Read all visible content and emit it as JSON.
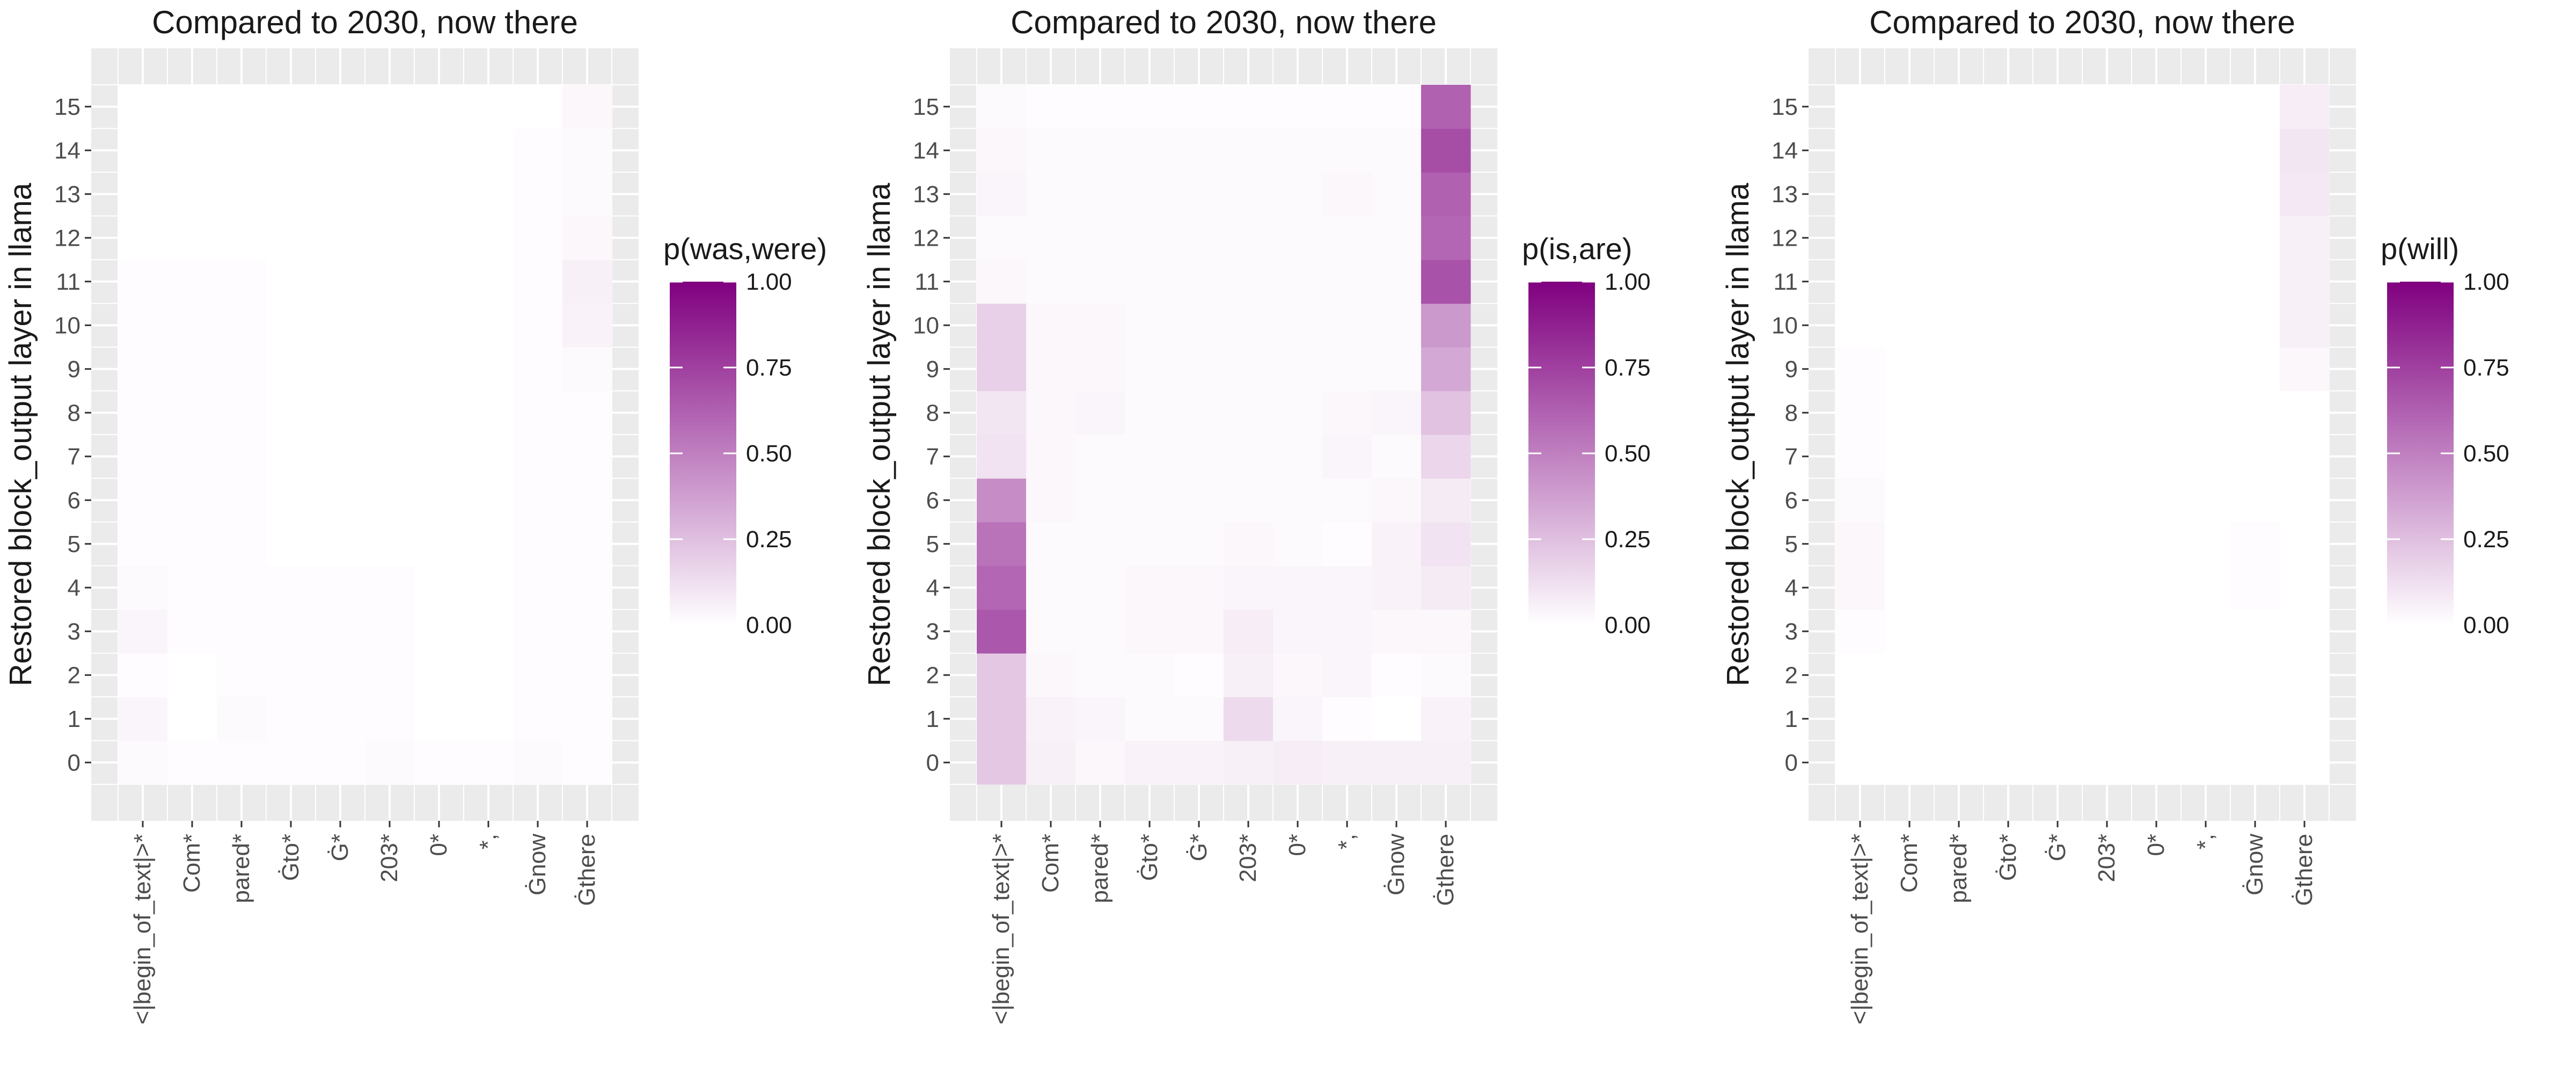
{
  "chart_data": [
    {
      "type": "heatmap",
      "title": "Compared to 2030, now there",
      "ylabel": "Restored block_output layer in llama",
      "xlabel": "",
      "legend": {
        "title": "p(was,were)",
        "ticks": [
          "0.00",
          "0.25",
          "0.50",
          "0.75",
          "1.00"
        ],
        "range": [
          0,
          1
        ],
        "placement": "right"
      },
      "x_categories": [
        "<|begin_of_text|>*",
        "Com*",
        "pared*",
        "Ġto*",
        "Ġ*",
        "203*",
        "0*",
        "*,",
        "Ġnow",
        "Ġthere"
      ],
      "y_categories": [
        "0",
        "1",
        "2",
        "3",
        "4",
        "5",
        "6",
        "7",
        "8",
        "9",
        "10",
        "11",
        "12",
        "13",
        "14",
        "15"
      ],
      "values": [
        [
          0.02,
          0.01,
          0.01,
          0.01,
          0.01,
          0.02,
          0.01,
          0.01,
          0.02,
          0.01
        ],
        [
          0.04,
          0.0,
          0.02,
          0.01,
          0.01,
          0.01,
          0.0,
          0.0,
          0.01,
          0.01
        ],
        [
          0.01,
          0.0,
          0.01,
          0.01,
          0.01,
          0.01,
          0.0,
          0.0,
          0.01,
          0.01
        ],
        [
          0.04,
          0.01,
          0.01,
          0.01,
          0.01,
          0.01,
          0.0,
          0.0,
          0.01,
          0.01
        ],
        [
          0.02,
          0.01,
          0.01,
          0.01,
          0.01,
          0.01,
          0.0,
          0.0,
          0.01,
          0.01
        ],
        [
          0.01,
          0.01,
          0.01,
          0.0,
          0.0,
          0.0,
          0.0,
          0.0,
          0.01,
          0.01
        ],
        [
          0.01,
          0.01,
          0.01,
          0.0,
          0.0,
          0.0,
          0.0,
          0.0,
          0.01,
          0.01
        ],
        [
          0.01,
          0.01,
          0.01,
          0.0,
          0.0,
          0.0,
          0.0,
          0.0,
          0.01,
          0.01
        ],
        [
          0.01,
          0.01,
          0.01,
          0.0,
          0.0,
          0.0,
          0.0,
          0.0,
          0.01,
          0.01
        ],
        [
          0.01,
          0.01,
          0.01,
          0.0,
          0.0,
          0.0,
          0.0,
          0.0,
          0.01,
          0.02
        ],
        [
          0.01,
          0.01,
          0.01,
          0.0,
          0.0,
          0.0,
          0.0,
          0.0,
          0.01,
          0.05
        ],
        [
          0.01,
          0.01,
          0.01,
          0.0,
          0.0,
          0.0,
          0.0,
          0.0,
          0.01,
          0.06
        ],
        [
          0.0,
          0.0,
          0.0,
          0.0,
          0.0,
          0.0,
          0.0,
          0.0,
          0.01,
          0.03
        ],
        [
          0.0,
          0.0,
          0.0,
          0.0,
          0.0,
          0.0,
          0.0,
          0.0,
          0.01,
          0.02
        ],
        [
          0.0,
          0.0,
          0.0,
          0.0,
          0.0,
          0.0,
          0.0,
          0.0,
          0.01,
          0.02
        ],
        [
          0.0,
          0.0,
          0.0,
          0.0,
          0.0,
          0.0,
          0.0,
          0.0,
          0.0,
          0.03
        ]
      ]
    },
    {
      "type": "heatmap",
      "title": "Compared to 2030, now there",
      "ylabel": "Restored block_output layer in llama",
      "xlabel": "",
      "legend": {
        "title": "p(is,are)",
        "ticks": [
          "0.00",
          "0.25",
          "0.50",
          "0.75",
          "1.00"
        ],
        "range": [
          0,
          1
        ],
        "placement": "right"
      },
      "x_categories": [
        "<|begin_of_text|>*",
        "Com*",
        "pared*",
        "Ġto*",
        "Ġ*",
        "203*",
        "0*",
        "*,",
        "Ġnow",
        "Ġthere"
      ],
      "y_categories": [
        "0",
        "1",
        "2",
        "3",
        "4",
        "5",
        "6",
        "7",
        "8",
        "9",
        "10",
        "11",
        "12",
        "13",
        "14",
        "15"
      ],
      "values": [
        [
          0.22,
          0.06,
          0.03,
          0.05,
          0.05,
          0.06,
          0.07,
          0.06,
          0.06,
          0.06
        ],
        [
          0.22,
          0.05,
          0.04,
          0.02,
          0.02,
          0.14,
          0.04,
          0.01,
          0.0,
          0.05
        ],
        [
          0.22,
          0.03,
          0.02,
          0.02,
          0.01,
          0.06,
          0.03,
          0.04,
          0.01,
          0.02
        ],
        [
          0.66,
          0.02,
          0.02,
          0.03,
          0.03,
          0.07,
          0.04,
          0.04,
          0.03,
          0.03
        ],
        [
          0.6,
          0.02,
          0.02,
          0.03,
          0.03,
          0.04,
          0.04,
          0.04,
          0.05,
          0.08
        ],
        [
          0.55,
          0.02,
          0.02,
          0.02,
          0.02,
          0.03,
          0.02,
          0.01,
          0.05,
          0.11
        ],
        [
          0.45,
          0.03,
          0.02,
          0.02,
          0.02,
          0.02,
          0.02,
          0.02,
          0.03,
          0.08
        ],
        [
          0.11,
          0.03,
          0.02,
          0.02,
          0.02,
          0.02,
          0.02,
          0.04,
          0.02,
          0.16
        ],
        [
          0.1,
          0.03,
          0.04,
          0.02,
          0.02,
          0.02,
          0.02,
          0.03,
          0.04,
          0.24
        ],
        [
          0.18,
          0.03,
          0.03,
          0.02,
          0.02,
          0.02,
          0.02,
          0.02,
          0.02,
          0.34
        ],
        [
          0.18,
          0.03,
          0.03,
          0.02,
          0.02,
          0.02,
          0.02,
          0.02,
          0.02,
          0.4
        ],
        [
          0.03,
          0.02,
          0.02,
          0.02,
          0.02,
          0.02,
          0.02,
          0.02,
          0.02,
          0.68
        ],
        [
          0.02,
          0.02,
          0.02,
          0.02,
          0.02,
          0.02,
          0.02,
          0.02,
          0.02,
          0.6
        ],
        [
          0.04,
          0.02,
          0.02,
          0.02,
          0.02,
          0.02,
          0.02,
          0.03,
          0.02,
          0.62
        ],
        [
          0.03,
          0.02,
          0.02,
          0.02,
          0.02,
          0.02,
          0.02,
          0.02,
          0.02,
          0.7
        ],
        [
          0.02,
          0.01,
          0.01,
          0.01,
          0.01,
          0.01,
          0.01,
          0.01,
          0.01,
          0.62
        ]
      ]
    },
    {
      "type": "heatmap",
      "title": "Compared to 2030, now there",
      "ylabel": "Restored block_output layer in llama",
      "xlabel": "",
      "legend": {
        "title": "p(will)",
        "ticks": [
          "0.00",
          "0.25",
          "0.50",
          "0.75",
          "1.00"
        ],
        "range": [
          0,
          1
        ],
        "placement": "right"
      },
      "x_categories": [
        "<|begin_of_text|>*",
        "Com*",
        "pared*",
        "Ġto*",
        "Ġ*",
        "203*",
        "0*",
        "*,",
        "Ġnow",
        "Ġthere"
      ],
      "y_categories": [
        "0",
        "1",
        "2",
        "3",
        "4",
        "5",
        "6",
        "7",
        "8",
        "9",
        "10",
        "11",
        "12",
        "13",
        "14",
        "15"
      ],
      "values": [
        [
          0.0,
          0.0,
          0.0,
          0.0,
          0.0,
          0.0,
          0.0,
          0.0,
          0.0,
          0.0
        ],
        [
          0.0,
          0.0,
          0.0,
          0.0,
          0.0,
          0.0,
          0.0,
          0.0,
          0.0,
          0.0
        ],
        [
          0.0,
          0.0,
          0.0,
          0.0,
          0.0,
          0.0,
          0.0,
          0.0,
          0.0,
          0.0
        ],
        [
          0.01,
          0.0,
          0.0,
          0.0,
          0.0,
          0.0,
          0.0,
          0.0,
          0.0,
          0.0
        ],
        [
          0.03,
          0.0,
          0.0,
          0.0,
          0.0,
          0.0,
          0.0,
          0.0,
          0.01,
          0.0
        ],
        [
          0.03,
          0.0,
          0.0,
          0.0,
          0.0,
          0.0,
          0.0,
          0.0,
          0.01,
          0.0
        ],
        [
          0.02,
          0.0,
          0.0,
          0.0,
          0.0,
          0.0,
          0.0,
          0.0,
          0.0,
          0.0
        ],
        [
          0.01,
          0.0,
          0.0,
          0.0,
          0.0,
          0.0,
          0.0,
          0.0,
          0.0,
          0.0
        ],
        [
          0.01,
          0.0,
          0.0,
          0.0,
          0.0,
          0.0,
          0.0,
          0.0,
          0.0,
          0.0
        ],
        [
          0.01,
          0.0,
          0.0,
          0.0,
          0.0,
          0.0,
          0.0,
          0.0,
          0.0,
          0.03
        ],
        [
          0.0,
          0.0,
          0.0,
          0.0,
          0.0,
          0.0,
          0.0,
          0.0,
          0.0,
          0.06
        ],
        [
          0.0,
          0.0,
          0.0,
          0.0,
          0.0,
          0.0,
          0.0,
          0.0,
          0.0,
          0.06
        ],
        [
          0.0,
          0.0,
          0.0,
          0.0,
          0.0,
          0.0,
          0.0,
          0.0,
          0.0,
          0.06
        ],
        [
          0.0,
          0.0,
          0.0,
          0.0,
          0.0,
          0.0,
          0.0,
          0.0,
          0.0,
          0.09
        ],
        [
          0.0,
          0.0,
          0.0,
          0.0,
          0.0,
          0.0,
          0.0,
          0.0,
          0.0,
          0.1
        ],
        [
          0.0,
          0.0,
          0.0,
          0.0,
          0.0,
          0.0,
          0.0,
          0.0,
          0.0,
          0.07
        ]
      ]
    }
  ],
  "colors": {
    "low": "#ffffff",
    "high": "#800080",
    "panel_background": "#ebebeb",
    "grid": "#ffffff"
  }
}
